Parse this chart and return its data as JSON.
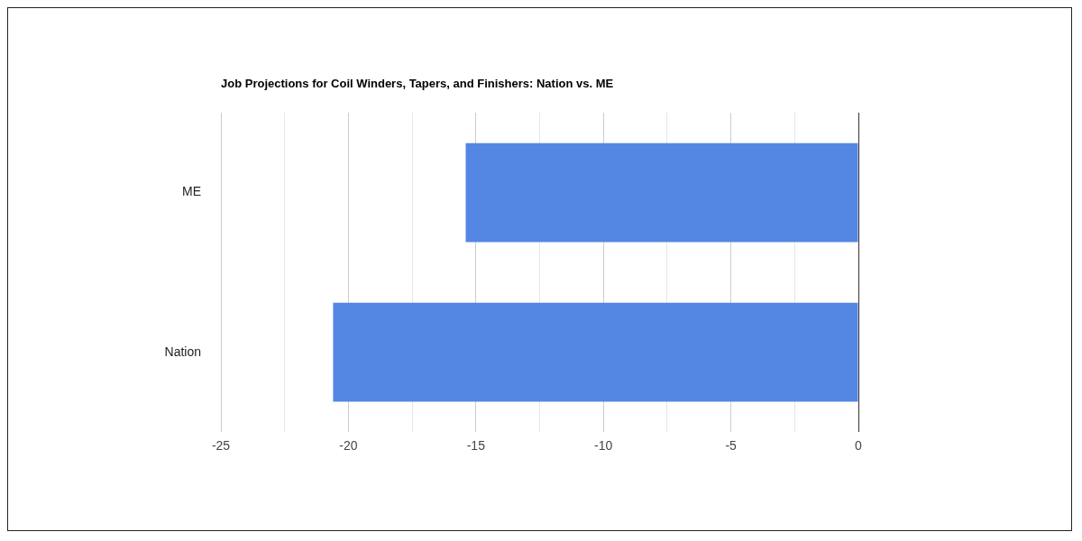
{
  "chart_data": {
    "type": "bar",
    "orientation": "horizontal",
    "title": "Job Projections for Coil Winders, Tapers, and Finishers: Nation vs. ME",
    "categories": [
      "ME",
      "Nation"
    ],
    "series": [
      {
        "color": "#5387e3",
        "values": [
          -15.4,
          -20.6
        ]
      }
    ],
    "xlim": [
      -25,
      0
    ],
    "xticks": [
      -25,
      {
        "value": -22.5,
        "label": null
      },
      -20,
      {
        "value": -17.5,
        "label": null
      },
      -15,
      {
        "value": -12.5,
        "label": null
      },
      -10,
      {
        "value": -7.5,
        "label": null
      },
      -5,
      {
        "value": -2.5,
        "label": null
      },
      0
    ],
    "grid": "x",
    "legend": false
  }
}
